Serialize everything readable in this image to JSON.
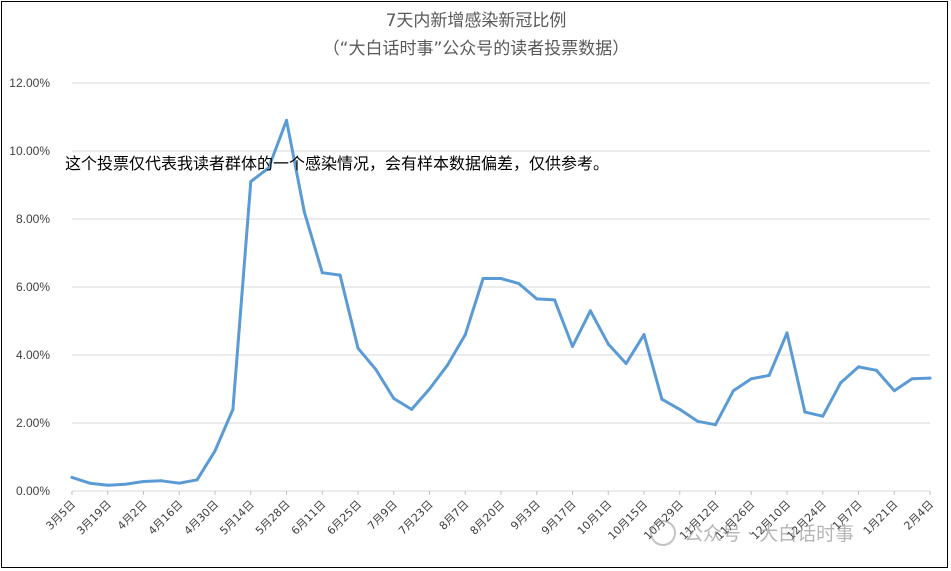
{
  "chart_data": {
    "type": "line",
    "title": "7天内新增感染新冠比例",
    "subtitle": "（“大白话时事”公众号的读者投票数据）",
    "annotation": "这个投票仅代表我读者群体的一个感染情况，会有样本数据偏差，仅供参考。",
    "watermark": "公众号 · 大白话时事",
    "ylim": [
      0,
      12
    ],
    "y_ticks": [
      "0.00%",
      "2.00%",
      "4.00%",
      "6.00%",
      "8.00%",
      "10.00%",
      "12.00%"
    ],
    "x_labels": [
      "3月5日",
      "3月19日",
      "4月2日",
      "4月16日",
      "4月30日",
      "5月14日",
      "5月28日",
      "6月11日",
      "6月25日",
      "7月9日",
      "7月23日",
      "8月7日",
      "8月20日",
      "9月3日",
      "9月17日",
      "10月1日",
      "10月15日",
      "10月29日",
      "11月12日",
      "11月26日",
      "12月10日",
      "12月24日",
      "1月7日",
      "1月21日",
      "2月4日"
    ],
    "series": [
      {
        "color": "#5B9BD5",
        "values": [
          0.4,
          0.23,
          0.17,
          0.2,
          0.28,
          0.3,
          0.23,
          0.33,
          1.18,
          2.4,
          9.1,
          9.5,
          10.9,
          8.2,
          6.42,
          6.35,
          4.2,
          3.57,
          2.72,
          2.4,
          3.0,
          3.7,
          4.6,
          6.25,
          6.25,
          6.1,
          5.65,
          5.62,
          4.25,
          5.3,
          4.32,
          3.75,
          4.6,
          2.7,
          2.4,
          2.05,
          1.95,
          2.95,
          3.3,
          3.4,
          4.65,
          2.32,
          2.2,
          3.18,
          3.65,
          3.55,
          2.95,
          3.3,
          3.32
        ]
      }
    ]
  }
}
